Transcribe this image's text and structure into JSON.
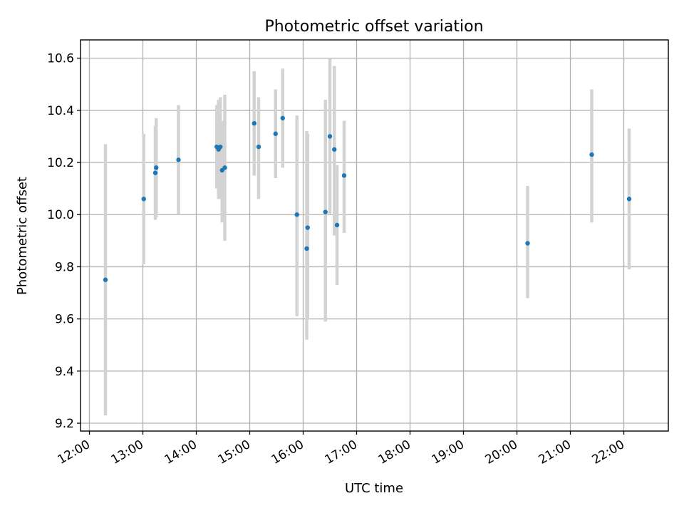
{
  "chart_data": {
    "type": "scatter",
    "title": "Photometric offset variation",
    "xlabel": "UTC time",
    "ylabel": "Photometric offset",
    "xlim": [
      "11:50",
      "22:50"
    ],
    "ylim": [
      9.17,
      10.67
    ],
    "x_ticks": [
      "12:00",
      "13:00",
      "14:00",
      "15:00",
      "16:00",
      "17:00",
      "18:00",
      "19:00",
      "20:00",
      "21:00",
      "22:00"
    ],
    "y_ticks": [
      "9.2",
      "9.4",
      "9.6",
      "9.8",
      "10.0",
      "10.2",
      "10.4",
      "10.6"
    ],
    "grid": true,
    "colors": {
      "marker": "#1f77b4",
      "errorbar": "#d3d3d3"
    },
    "series": [
      {
        "points": [
          {
            "x": "12:18",
            "y": 9.75,
            "ylow": 9.23,
            "yhigh": 10.27
          },
          {
            "x": "13:01",
            "y": 10.06,
            "ylow": 9.81,
            "yhigh": 10.31
          },
          {
            "x": "13:14",
            "y": 10.16,
            "ylow": 9.98,
            "yhigh": 10.34
          },
          {
            "x": "13:15",
            "y": 10.18,
            "ylow": 9.99,
            "yhigh": 10.37
          },
          {
            "x": "13:40",
            "y": 10.21,
            "ylow": 10.0,
            "yhigh": 10.42
          },
          {
            "x": "14:23",
            "y": 10.26,
            "ylow": 10.1,
            "yhigh": 10.42
          },
          {
            "x": "14:25",
            "y": 10.25,
            "ylow": 10.06,
            "yhigh": 10.44
          },
          {
            "x": "14:27",
            "y": 10.26,
            "ylow": 10.06,
            "yhigh": 10.45
          },
          {
            "x": "14:29",
            "y": 10.17,
            "ylow": 9.97,
            "yhigh": 10.36
          },
          {
            "x": "14:32",
            "y": 10.18,
            "ylow": 9.9,
            "yhigh": 10.46
          },
          {
            "x": "15:05",
            "y": 10.35,
            "ylow": 10.15,
            "yhigh": 10.55
          },
          {
            "x": "15:10",
            "y": 10.26,
            "ylow": 10.06,
            "yhigh": 10.45
          },
          {
            "x": "15:29",
            "y": 10.31,
            "ylow": 10.14,
            "yhigh": 10.48
          },
          {
            "x": "15:37",
            "y": 10.37,
            "ylow": 10.18,
            "yhigh": 10.56
          },
          {
            "x": "15:53",
            "y": 10.0,
            "ylow": 9.61,
            "yhigh": 10.38
          },
          {
            "x": "16:04",
            "y": 9.87,
            "ylow": 9.52,
            "yhigh": 10.32
          },
          {
            "x": "16:05",
            "y": 9.95,
            "ylow": 9.6,
            "yhigh": 10.31
          },
          {
            "x": "16:25",
            "y": 10.01,
            "ylow": 9.59,
            "yhigh": 10.44
          },
          {
            "x": "16:30",
            "y": 10.3,
            "ylow": 10.0,
            "yhigh": 10.6
          },
          {
            "x": "16:35",
            "y": 10.25,
            "ylow": 9.92,
            "yhigh": 10.57
          },
          {
            "x": "16:38",
            "y": 9.96,
            "ylow": 9.73,
            "yhigh": 10.19
          },
          {
            "x": "16:46",
            "y": 10.15,
            "ylow": 9.93,
            "yhigh": 10.36
          },
          {
            "x": "20:12",
            "y": 9.89,
            "ylow": 9.68,
            "yhigh": 10.11
          },
          {
            "x": "21:24",
            "y": 10.23,
            "ylow": 9.97,
            "yhigh": 10.48
          },
          {
            "x": "22:06",
            "y": 10.06,
            "ylow": 9.79,
            "yhigh": 10.33
          }
        ]
      }
    ]
  }
}
